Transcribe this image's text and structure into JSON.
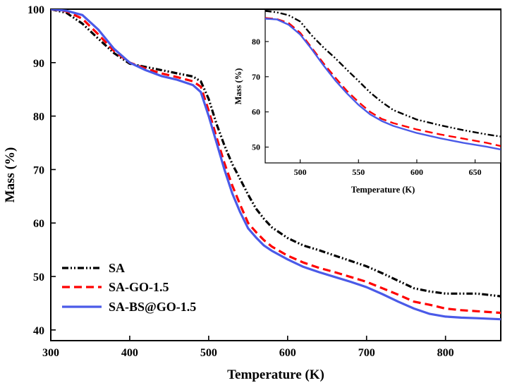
{
  "chart_data": [
    {
      "type": "line",
      "xlabel": "Temperature (K)",
      "ylabel": "Mass (%)",
      "xlim": [
        300,
        870
      ],
      "ylim": [
        38,
        100
      ],
      "xticks": [
        300,
        400,
        500,
        600,
        700,
        800
      ],
      "yticks": [
        40,
        50,
        60,
        70,
        80,
        90,
        100
      ],
      "legend_position": "bottom-left",
      "series": [
        {
          "name": "SA",
          "color": "#000000",
          "style": "dashdotdot",
          "x": [
            300,
            320,
            340,
            360,
            380,
            400,
            420,
            440,
            460,
            480,
            490,
            500,
            510,
            520,
            530,
            540,
            550,
            560,
            570,
            580,
            600,
            620,
            640,
            660,
            680,
            700,
            720,
            740,
            760,
            780,
            800,
            820,
            840,
            870
          ],
          "y": [
            100,
            99.3,
            97.3,
            94.5,
            91.8,
            89.8,
            89.2,
            88.6,
            88.0,
            87.4,
            86.5,
            83.2,
            78.5,
            74.5,
            71.0,
            68.2,
            65.3,
            62.7,
            60.8,
            59.2,
            57.2,
            55.8,
            54.9,
            53.9,
            52.9,
            51.9,
            50.6,
            49.2,
            47.8,
            47.2,
            46.8,
            46.8,
            46.8,
            46.3
          ]
        },
        {
          "name": "SA-GO-1.5",
          "color": "#ff0000",
          "style": "dashed",
          "x": [
            300,
            320,
            340,
            360,
            380,
            400,
            420,
            440,
            460,
            480,
            490,
            500,
            510,
            520,
            530,
            540,
            550,
            560,
            570,
            580,
            600,
            620,
            640,
            660,
            680,
            700,
            720,
            740,
            760,
            780,
            800,
            820,
            840,
            870
          ],
          "y": [
            100,
            99.6,
            98.2,
            95.3,
            92.2,
            90.0,
            88.9,
            88.0,
            87.3,
            86.5,
            85.5,
            81.0,
            76.0,
            71.2,
            67.0,
            63.4,
            60.0,
            58.3,
            56.8,
            55.6,
            53.9,
            52.6,
            51.6,
            50.8,
            49.9,
            49.0,
            47.8,
            46.6,
            45.3,
            44.7,
            44.0,
            43.7,
            43.5,
            43.2
          ]
        },
        {
          "name": "SA-BS@GO-1.5",
          "color": "#4a5ae8",
          "style": "solid",
          "x": [
            300,
            320,
            340,
            360,
            380,
            400,
            420,
            440,
            460,
            480,
            490,
            500,
            510,
            520,
            530,
            540,
            550,
            560,
            570,
            580,
            600,
            620,
            640,
            660,
            680,
            700,
            720,
            740,
            760,
            780,
            800,
            820,
            840,
            870
          ],
          "y": [
            100,
            99.7,
            98.9,
            96.2,
            92.6,
            90.0,
            88.6,
            87.5,
            86.8,
            85.8,
            84.5,
            80.0,
            75.0,
            70.0,
            65.5,
            62.0,
            59.0,
            57.3,
            55.8,
            54.8,
            53.2,
            51.8,
            50.8,
            49.9,
            49.0,
            48.0,
            46.7,
            45.3,
            44.0,
            43.0,
            42.5,
            42.3,
            42.2,
            42.0
          ]
        }
      ]
    },
    {
      "type": "line",
      "xlabel": "Temperature (K)",
      "ylabel": "Mass (%)",
      "xlim": [
        470,
        672
      ],
      "ylim": [
        45.5,
        89
      ],
      "xticks": [
        500,
        550,
        600,
        650
      ],
      "yticks": [
        50,
        60,
        70,
        80
      ],
      "series": [
        {
          "name": "SA",
          "color": "#000000",
          "style": "dashdotdot",
          "x": [
            470,
            480,
            490,
            500,
            510,
            520,
            530,
            540,
            550,
            560,
            570,
            580,
            600,
            620,
            640,
            660,
            672
          ],
          "y": [
            88.7,
            88.3,
            87.5,
            85.7,
            81.7,
            78.3,
            75.3,
            72.0,
            68.8,
            65.5,
            62.8,
            60.5,
            57.8,
            56.2,
            54.8,
            53.6,
            53.0
          ]
        },
        {
          "name": "SA-GO-1.5",
          "color": "#ff0000",
          "style": "dashed",
          "x": [
            470,
            480,
            490,
            500,
            510,
            520,
            530,
            540,
            550,
            560,
            570,
            580,
            600,
            620,
            640,
            660,
            672
          ],
          "y": [
            86.7,
            86.4,
            85.3,
            82.5,
            78.2,
            73.8,
            69.8,
            66.0,
            62.8,
            60.0,
            58.0,
            56.8,
            55.0,
            53.6,
            52.4,
            51.2,
            50.3
          ]
        },
        {
          "name": "SA-BS@GO-1.5",
          "color": "#4a5ae8",
          "style": "solid",
          "x": [
            470,
            480,
            490,
            500,
            510,
            520,
            530,
            540,
            550,
            560,
            570,
            580,
            600,
            620,
            640,
            660,
            672
          ],
          "y": [
            86.5,
            86.3,
            84.8,
            82.0,
            77.8,
            73.2,
            69.0,
            65.3,
            62.0,
            59.3,
            57.4,
            56.0,
            54.0,
            52.5,
            51.2,
            50.1,
            49.3
          ]
        }
      ]
    }
  ]
}
